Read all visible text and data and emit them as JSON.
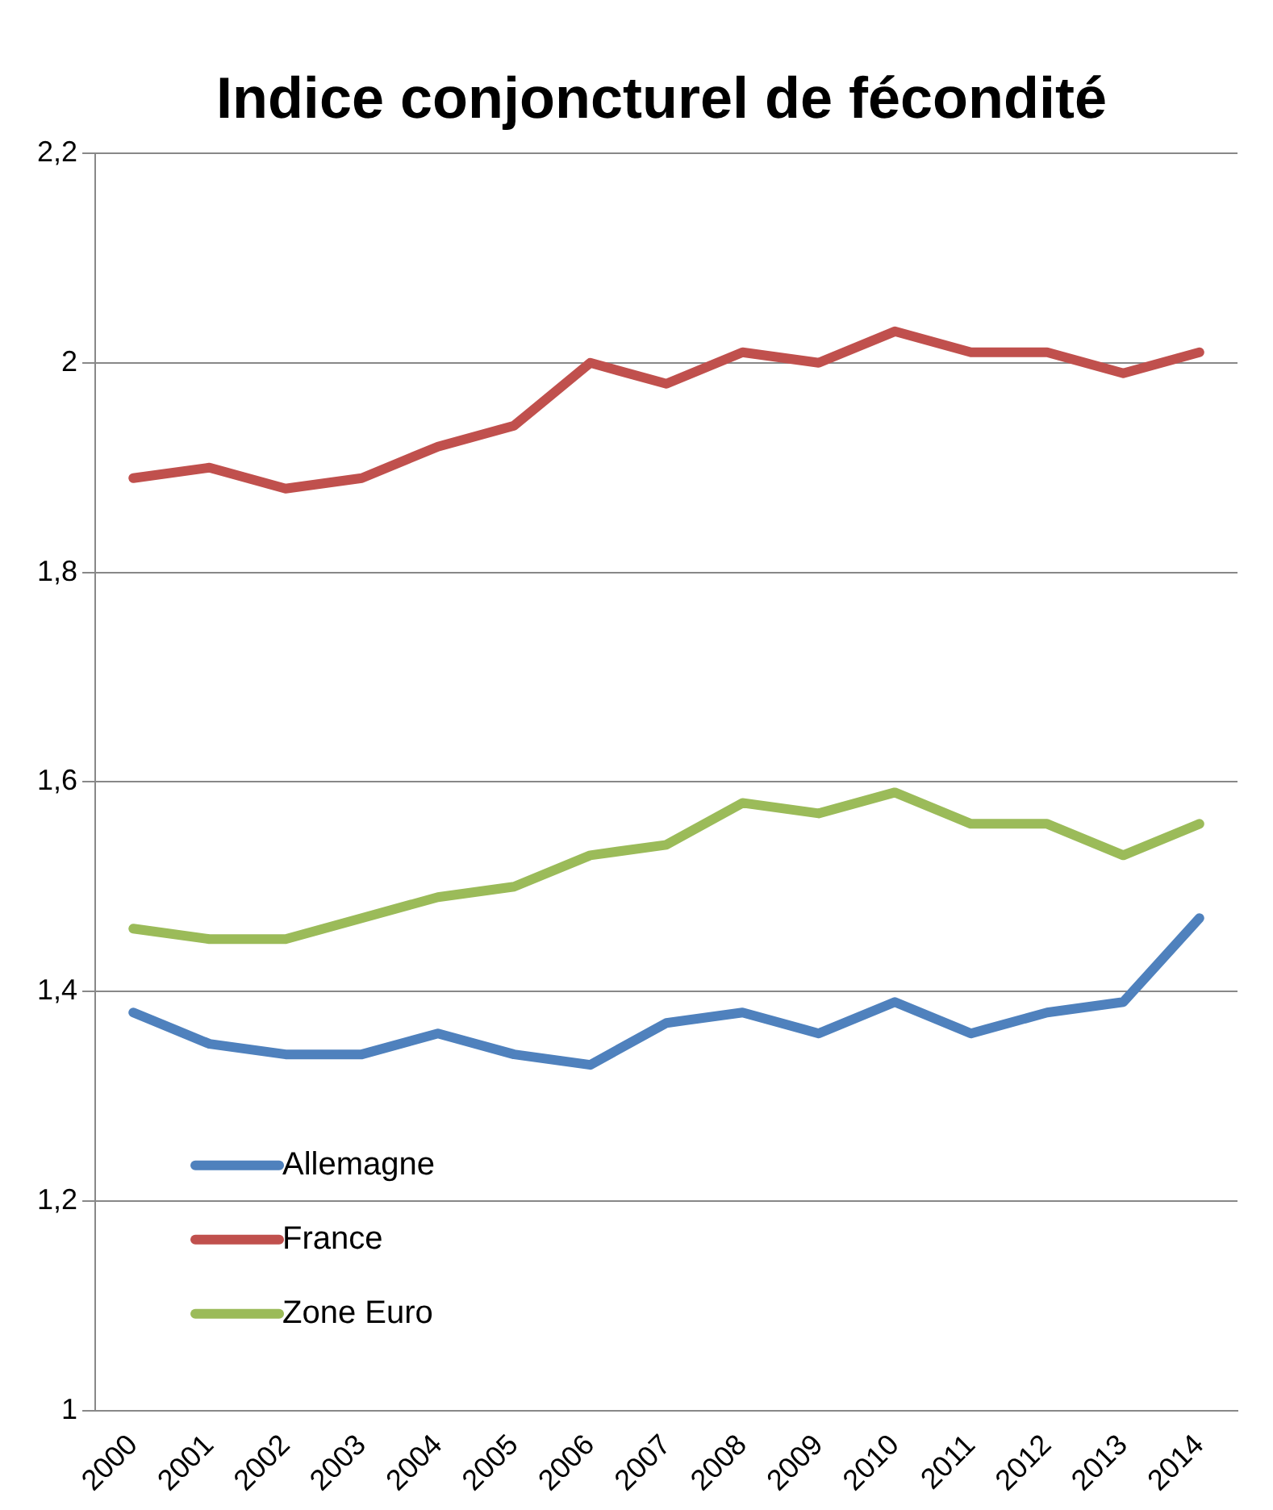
{
  "chart_data": {
    "type": "line",
    "title": "Indice conjoncturel de fécondité",
    "categories": [
      "2000",
      "2001",
      "2002",
      "2003",
      "2004",
      "2005",
      "2006",
      "2007",
      "2008",
      "2009",
      "2010",
      "2011",
      "2012",
      "2013",
      "2014"
    ],
    "series": [
      {
        "name": "Allemagne",
        "color": "#4f81bd",
        "values": [
          1.38,
          1.35,
          1.34,
          1.34,
          1.36,
          1.34,
          1.33,
          1.37,
          1.38,
          1.36,
          1.39,
          1.36,
          1.38,
          1.39,
          1.47
        ]
      },
      {
        "name": "France",
        "color": "#c0504d",
        "values": [
          1.89,
          1.9,
          1.88,
          1.89,
          1.92,
          1.94,
          2.0,
          1.98,
          2.01,
          2.0,
          2.03,
          2.01,
          2.01,
          1.99,
          2.01
        ]
      },
      {
        "name": "Zone Euro",
        "color": "#9bbb59",
        "values": [
          1.46,
          1.45,
          1.45,
          1.47,
          1.49,
          1.5,
          1.53,
          1.54,
          1.58,
          1.57,
          1.59,
          1.56,
          1.56,
          1.53,
          1.56
        ]
      }
    ],
    "ylim": [
      1,
      2.2
    ],
    "yticks": [
      1,
      {
        "value": 1.2,
        "label": "1,2"
      },
      {
        "value": 1.4,
        "label": "1,4"
      },
      {
        "value": 1.6,
        "label": "1,6"
      },
      {
        "value": 1.8,
        "label": "1,8"
      },
      2,
      {
        "value": 2.2,
        "label": "2,2"
      }
    ],
    "grid": "y",
    "legend": "bottom left",
    "marker": "none",
    "line_style": "solid"
  }
}
